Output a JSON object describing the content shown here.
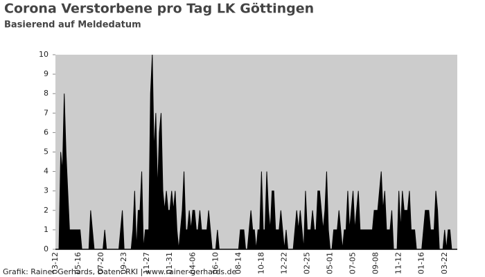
{
  "chart_data": {
    "type": "area",
    "title": "Corona Verstorbene pro Tag LK Göttingen",
    "subtitle": "Basierend auf Meldedatum",
    "source": "Grafik: Rainer Gerhards, Daten: RKI | www.rainer-gerhards.de",
    "color": "#000000",
    "background": "#cccccc",
    "categories": [
      "03-12",
      null,
      null,
      null,
      null,
      null,
      null,
      null,
      null,
      null,
      null,
      null,
      null,
      "05-16",
      null,
      null,
      null,
      null,
      null,
      null,
      null,
      null,
      null,
      null,
      null,
      null,
      "07-20",
      null,
      null,
      null,
      null,
      null,
      null,
      null,
      null,
      null,
      null,
      null,
      null,
      "09-23",
      null,
      null,
      null,
      null,
      null,
      null,
      null,
      null,
      null,
      null,
      null,
      null,
      "11-27",
      null,
      null,
      null,
      null,
      null,
      null,
      null,
      null,
      null,
      null,
      null,
      null,
      "01-31",
      null,
      null,
      null,
      null,
      null,
      null,
      null,
      null,
      null,
      null,
      null,
      null,
      "04-06",
      null,
      null,
      null,
      null,
      null,
      null,
      null,
      null,
      null,
      null,
      null,
      null,
      "06-10",
      null,
      null,
      null,
      null,
      null,
      null,
      null,
      null,
      null,
      null,
      null,
      null,
      "08-14",
      null,
      null,
      null,
      null,
      null,
      null,
      null,
      null,
      null,
      null,
      null,
      null,
      "10-18",
      null,
      null,
      null,
      null,
      null,
      null,
      null,
      null,
      null,
      null,
      null,
      null,
      "12-22",
      null,
      null,
      null,
      null,
      null,
      null,
      null,
      null,
      null,
      null,
      null,
      null,
      "02-25",
      null,
      null,
      null,
      null,
      null,
      null,
      null,
      null,
      null,
      null,
      null,
      null,
      "05-01",
      null,
      null,
      null,
      null,
      null,
      null,
      null,
      null,
      null,
      null,
      null,
      null,
      "07-05",
      null,
      null,
      null,
      null,
      null,
      null,
      null,
      null,
      null,
      null,
      null,
      null,
      "09-08",
      null,
      null,
      null,
      null,
      null,
      null,
      null,
      null,
      null,
      null,
      null,
      null,
      "11-12",
      null,
      null,
      null,
      null,
      null,
      null,
      null,
      null,
      null,
      null,
      null,
      null,
      "01-16",
      null,
      null,
      null,
      null,
      null,
      null,
      null,
      null,
      null,
      null,
      null,
      null,
      "03-22",
      null,
      null,
      null,
      null,
      null,
      null
    ],
    "values": [
      0,
      0,
      0,
      5,
      4,
      8,
      5,
      3,
      1,
      1,
      1,
      1,
      1,
      1,
      1,
      0,
      0,
      0,
      0,
      0,
      2,
      1,
      0,
      0,
      0,
      0,
      0,
      0,
      1,
      0,
      0,
      0,
      0,
      0,
      0,
      0,
      0,
      1,
      2,
      0,
      0,
      0,
      0,
      0,
      1,
      3,
      0,
      2,
      2,
      4,
      0,
      1,
      1,
      1,
      8,
      10,
      5,
      7,
      3,
      6,
      7,
      3,
      2,
      3,
      2,
      2,
      3,
      2,
      3,
      1,
      0,
      1,
      2,
      4,
      1,
      1,
      2,
      1,
      2,
      2,
      1,
      1,
      2,
      1,
      1,
      1,
      1,
      2,
      1,
      0,
      0,
      0,
      1,
      0,
      0,
      0,
      0,
      0,
      0,
      0,
      0,
      0,
      0,
      0,
      0,
      1,
      1,
      1,
      0,
      0,
      1,
      2,
      1,
      1,
      0,
      1,
      1,
      4,
      1,
      1,
      4,
      2,
      1,
      3,
      3,
      1,
      1,
      1,
      2,
      1,
      0,
      1,
      0,
      0,
      0,
      0,
      1,
      2,
      1,
      2,
      1,
      0,
      3,
      1,
      1,
      1,
      2,
      1,
      1,
      3,
      3,
      2,
      1,
      2,
      4,
      1,
      0,
      0,
      1,
      1,
      1,
      2,
      1,
      0,
      1,
      1,
      3,
      1,
      2,
      3,
      1,
      2,
      3,
      1,
      1,
      1,
      1,
      1,
      1,
      1,
      1,
      2,
      2,
      2,
      3,
      4,
      2,
      3,
      1,
      1,
      1,
      2,
      0,
      0,
      0,
      3,
      1,
      3,
      2,
      2,
      2,
      3,
      1,
      1,
      1,
      0,
      0,
      0,
      0,
      1,
      2,
      2,
      2,
      1,
      1,
      1,
      3,
      2,
      0,
      0,
      0,
      1,
      0,
      1,
      1,
      0,
      0,
      0
    ],
    "ylim": [
      0,
      10
    ],
    "yticks": [
      0,
      1,
      2,
      3,
      4,
      5,
      6,
      7,
      8,
      9,
      10
    ]
  }
}
